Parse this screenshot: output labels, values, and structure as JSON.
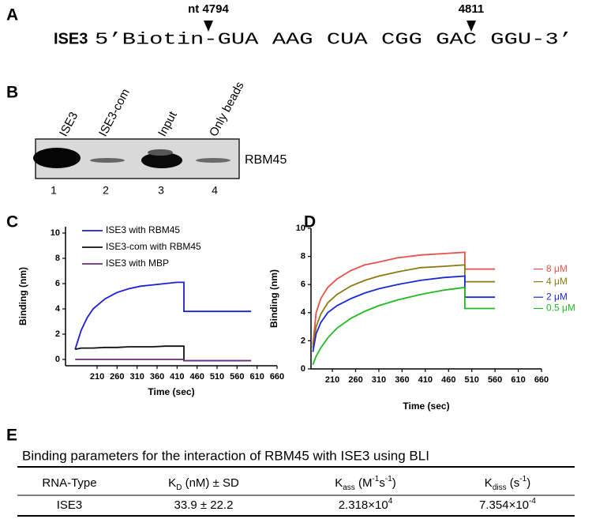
{
  "panel_a": {
    "label": "A",
    "name": "ISE3",
    "sequence": "5’Biotin-GUA AAG CUA CGG GAC GGU-3’",
    "markers": [
      "nt 4794",
      "4811"
    ]
  },
  "panel_b": {
    "label": "B",
    "lanes": [
      "ISE3",
      "ISE3-com",
      "Input",
      "Only beads"
    ],
    "lane_numbers": [
      "1",
      "2",
      "3",
      "4"
    ],
    "protein": "RBM45"
  },
  "chart_data": [
    {
      "type": "line",
      "label": "C",
      "xlabel": "Time (sec)",
      "ylabel": "Binding (nm)",
      "legend": "top-left",
      "xlim": [
        131,
        660
      ],
      "xticks": [
        210,
        260,
        310,
        360,
        410,
        460,
        510,
        560,
        610,
        660
      ],
      "ylim": [
        -0.5,
        10.5
      ],
      "yticks": [
        0,
        2,
        4,
        6,
        8,
        10
      ],
      "x": [
        155,
        170,
        185,
        200,
        230,
        260,
        290,
        320,
        350,
        380,
        410,
        427,
        427,
        450,
        500,
        550,
        595
      ],
      "series": [
        {
          "name": "ISE3 with RBM45",
          "color": "#1c1fd2",
          "values": [
            0.8,
            2.3,
            3.3,
            4.0,
            4.8,
            5.3,
            5.6,
            5.8,
            5.9,
            6.0,
            6.1,
            6.1,
            3.8,
            3.8,
            3.8,
            3.8,
            3.8
          ]
        },
        {
          "name": "ISE3-com with RBM45",
          "color": "#111111",
          "values": [
            0.8,
            0.9,
            0.9,
            0.9,
            0.95,
            0.95,
            1.0,
            1.0,
            1.0,
            1.05,
            1.05,
            1.05,
            -0.1,
            -0.1,
            -0.1,
            -0.1,
            -0.1
          ]
        },
        {
          "name": "ISE3 with MBP",
          "color": "#6b2a7c",
          "values": [
            0,
            0,
            0,
            0,
            0,
            0,
            0,
            0,
            0,
            0,
            0,
            0,
            -0.1,
            -0.1,
            -0.1,
            -0.1,
            -0.1
          ]
        }
      ]
    },
    {
      "type": "line",
      "label": "D",
      "xlabel": "Time (sec)",
      "ylabel": "Binding (nm)",
      "legend": "right",
      "xlim": [
        164,
        660
      ],
      "xticks": [
        210,
        260,
        310,
        360,
        410,
        460,
        510,
        560,
        610,
        660
      ],
      "ylim": [
        0,
        10
      ],
      "yticks": [
        0,
        2,
        4,
        6,
        8,
        10
      ],
      "x": [
        168,
        175,
        185,
        200,
        220,
        250,
        280,
        310,
        350,
        400,
        450,
        495,
        495,
        520,
        560
      ],
      "series": [
        {
          "name": "8 μM",
          "color": "#e8504a",
          "values": [
            1.7,
            4.0,
            5.0,
            5.8,
            6.4,
            7.0,
            7.4,
            7.6,
            7.9,
            8.1,
            8.2,
            8.3,
            7.1,
            7.1,
            7.1
          ]
        },
        {
          "name": "4 μM",
          "color": "#8a7a10",
          "values": [
            1.5,
            3.0,
            3.9,
            4.7,
            5.3,
            5.9,
            6.3,
            6.6,
            6.9,
            7.2,
            7.3,
            7.4,
            6.2,
            6.2,
            6.2
          ]
        },
        {
          "name": "2 μM",
          "color": "#1a2ad8",
          "values": [
            1.2,
            2.5,
            3.3,
            4.0,
            4.5,
            5.0,
            5.4,
            5.7,
            6.0,
            6.3,
            6.5,
            6.6,
            5.1,
            5.1,
            5.1
          ]
        },
        {
          "name": "0.5 μM",
          "color": "#22b822",
          "values": [
            0.3,
            0.9,
            1.5,
            2.2,
            2.9,
            3.6,
            4.1,
            4.5,
            4.9,
            5.3,
            5.6,
            5.8,
            4.3,
            4.3,
            4.3
          ]
        }
      ]
    }
  ],
  "panel_e": {
    "label": "E",
    "title": "Binding parameters for the interaction of RBM45 with ISE3 using BLI",
    "table": {
      "header": [
        [
          {
            "text": "RNA-Type"
          }
        ],
        [
          {
            "text": "K"
          },
          {
            "text": "D",
            "style": "sub"
          },
          {
            "text": " (nM) ± SD"
          }
        ],
        [
          {
            "text": "K"
          },
          {
            "text": "ass",
            "style": "sub"
          },
          {
            "text": " (M"
          },
          {
            "text": "-1",
            "style": "sup"
          },
          {
            "text": "s"
          },
          {
            "text": "-1",
            "style": "sup"
          },
          {
            "text": ")"
          }
        ],
        [
          {
            "text": "K"
          },
          {
            "text": "diss",
            "style": "sub"
          },
          {
            "text": " (s"
          },
          {
            "text": "-1",
            "style": "sup"
          },
          {
            "text": ")"
          }
        ]
      ],
      "rows": [
        [
          [
            {
              "text": "ISE3"
            }
          ],
          [
            {
              "text": "33.9 ± 22.2"
            }
          ],
          [
            {
              "text": "2.318×10"
            },
            {
              "text": "4",
              "style": "sup"
            }
          ],
          [
            {
              "text": "7.354×10"
            },
            {
              "text": "-4",
              "style": "sup"
            }
          ]
        ]
      ]
    }
  }
}
